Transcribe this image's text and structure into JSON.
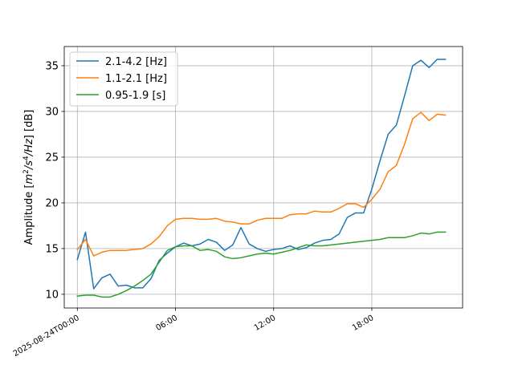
{
  "chart_data": {
    "type": "line",
    "ylabel_parts": {
      "prefix": "Amplitude [",
      "m": "m",
      "m_exp": "2",
      "slash1": "/",
      "s": "s",
      "s_exp": "4",
      "slash2": "/",
      "Hz": "Hz",
      "suffix": "] [dB]"
    },
    "xlabel": "",
    "title": "",
    "x_start": "2025-08-24T00:00",
    "x_step_minutes": 30,
    "xlim_hours": [
      -0.8,
      23.55
    ],
    "ylim": [
      8.5,
      37.1
    ],
    "x_ticks": [
      {
        "hour": 0,
        "label": "2025-08-24T00:00"
      },
      {
        "hour": 6,
        "label": "06:00"
      },
      {
        "hour": 12,
        "label": "12:00"
      },
      {
        "hour": 18,
        "label": "18:00"
      }
    ],
    "y_ticks": [
      {
        "value": 10,
        "label": "10"
      },
      {
        "value": 15,
        "label": "15"
      },
      {
        "value": 20,
        "label": "20"
      },
      {
        "value": 25,
        "label": "25"
      },
      {
        "value": 30,
        "label": "30"
      },
      {
        "value": 35,
        "label": "35"
      }
    ],
    "grid": true,
    "legend_position": "top-left",
    "series": [
      {
        "name": "2.1-4.2 [Hz]",
        "color": "#1f77b4",
        "values": [
          13.8,
          16.8,
          10.6,
          11.8,
          12.2,
          10.9,
          11.0,
          10.7,
          10.7,
          11.7,
          13.7,
          14.5,
          15.2,
          15.6,
          15.3,
          15.5,
          16.0,
          15.7,
          14.8,
          15.4,
          17.3,
          15.5,
          15.0,
          14.7,
          14.9,
          15.0,
          15.3,
          14.9,
          15.1,
          15.6,
          15.9,
          16.0,
          16.6,
          18.4,
          18.9,
          18.9,
          21.5,
          24.6,
          27.5,
          28.5,
          31.7,
          35.0,
          35.6,
          34.8,
          35.7,
          35.7
        ]
      },
      {
        "name": "1.1-2.1 [Hz]",
        "color": "#ff7f0e",
        "values": [
          14.9,
          16.0,
          14.2,
          14.6,
          14.8,
          14.8,
          14.8,
          14.9,
          15.0,
          15.5,
          16.3,
          17.5,
          18.2,
          18.3,
          18.3,
          18.2,
          18.2,
          18.3,
          18.0,
          17.9,
          17.7,
          17.7,
          18.1,
          18.3,
          18.3,
          18.3,
          18.7,
          18.8,
          18.8,
          19.1,
          19.0,
          19.0,
          19.4,
          19.9,
          19.9,
          19.5,
          20.4,
          21.5,
          23.4,
          24.1,
          26.4,
          29.2,
          29.9,
          29.0,
          29.7,
          29.6
        ]
      },
      {
        "name": "0.95-1.9 [s]",
        "color": "#2ca02c",
        "values": [
          9.8,
          9.9,
          9.9,
          9.7,
          9.7,
          10.0,
          10.4,
          10.9,
          11.5,
          12.2,
          13.5,
          14.8,
          15.2,
          15.3,
          15.3,
          14.8,
          14.9,
          14.7,
          14.1,
          13.9,
          14.0,
          14.2,
          14.4,
          14.5,
          14.4,
          14.6,
          14.8,
          15.1,
          15.4,
          15.3,
          15.3,
          15.4,
          15.5,
          15.6,
          15.7,
          15.8,
          15.9,
          16.0,
          16.2,
          16.2,
          16.2,
          16.4,
          16.7,
          16.6,
          16.8,
          16.8
        ]
      }
    ]
  }
}
